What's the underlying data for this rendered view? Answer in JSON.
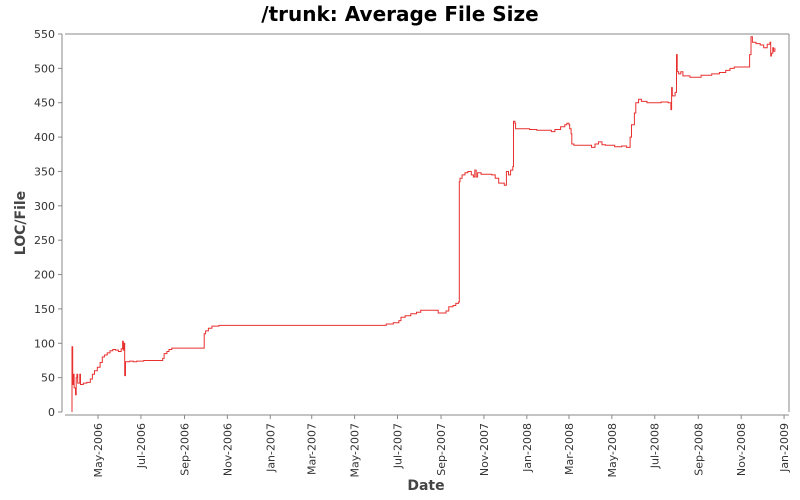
{
  "chart_data": {
    "type": "line",
    "title": "/trunk: Average File Size",
    "xlabel": "Date",
    "ylabel": "LOC/File",
    "ylim": [
      0,
      550
    ],
    "xlim": [
      "2006-03-15",
      "2009-01-08"
    ],
    "yticks": [
      0,
      50,
      100,
      150,
      200,
      250,
      300,
      350,
      400,
      450,
      500,
      550
    ],
    "xticks": [
      {
        "date": "2006-05-01",
        "label": "May-2006"
      },
      {
        "date": "2006-07-01",
        "label": "Jul-2006"
      },
      {
        "date": "2006-09-01",
        "label": "Sep-2006"
      },
      {
        "date": "2006-11-01",
        "label": "Nov-2006"
      },
      {
        "date": "2007-01-01",
        "label": "Jan-2007"
      },
      {
        "date": "2007-03-01",
        "label": "Mar-2007"
      },
      {
        "date": "2007-05-01",
        "label": "May-2007"
      },
      {
        "date": "2007-07-01",
        "label": "Jul-2007"
      },
      {
        "date": "2007-09-01",
        "label": "Sep-2007"
      },
      {
        "date": "2007-11-01",
        "label": "Nov-2007"
      },
      {
        "date": "2008-01-01",
        "label": "Jan-2008"
      },
      {
        "date": "2008-03-01",
        "label": "Mar-2008"
      },
      {
        "date": "2008-05-01",
        "label": "May-2008"
      },
      {
        "date": "2008-07-01",
        "label": "Jul-2008"
      },
      {
        "date": "2008-09-01",
        "label": "Sep-2008"
      },
      {
        "date": "2008-11-01",
        "label": "Nov-2008"
      },
      {
        "date": "2009-01-01",
        "label": "Jan-2009"
      }
    ],
    "grid": false,
    "series": [
      {
        "color": "#e8302f",
        "step": true,
        "points": [
          [
            "2006-03-25",
            0
          ],
          [
            "2006-03-25",
            95
          ],
          [
            "2006-03-26",
            40
          ],
          [
            "2006-03-27",
            55
          ],
          [
            "2006-03-28",
            35
          ],
          [
            "2006-03-30",
            25
          ],
          [
            "2006-03-31",
            50
          ],
          [
            "2006-04-01",
            55
          ],
          [
            "2006-04-02",
            42
          ],
          [
            "2006-04-05",
            55
          ],
          [
            "2006-04-06",
            40
          ],
          [
            "2006-04-10",
            42
          ],
          [
            "2006-04-15",
            43
          ],
          [
            "2006-04-20",
            48
          ],
          [
            "2006-04-23",
            55
          ],
          [
            "2006-04-26",
            60
          ],
          [
            "2006-04-30",
            65
          ],
          [
            "2006-05-04",
            72
          ],
          [
            "2006-05-07",
            80
          ],
          [
            "2006-05-10",
            83
          ],
          [
            "2006-05-14",
            86
          ],
          [
            "2006-05-18",
            89
          ],
          [
            "2006-05-22",
            91
          ],
          [
            "2006-05-26",
            90
          ],
          [
            "2006-05-30",
            88
          ],
          [
            "2006-06-03",
            92
          ],
          [
            "2006-06-05",
            103
          ],
          [
            "2006-06-06",
            90
          ],
          [
            "2006-06-07",
            100
          ],
          [
            "2006-06-08",
            53
          ],
          [
            "2006-06-09",
            73
          ],
          [
            "2006-06-15",
            74
          ],
          [
            "2006-06-20",
            73
          ],
          [
            "2006-06-25",
            74
          ],
          [
            "2006-07-05",
            75
          ],
          [
            "2006-07-20",
            75
          ],
          [
            "2006-08-01",
            78
          ],
          [
            "2006-08-03",
            85
          ],
          [
            "2006-08-07",
            88
          ],
          [
            "2006-08-10",
            91
          ],
          [
            "2006-08-14",
            93
          ],
          [
            "2006-09-01",
            93
          ],
          [
            "2006-09-10",
            93
          ],
          [
            "2006-09-28",
            93
          ],
          [
            "2006-09-29",
            114
          ],
          [
            "2006-10-01",
            118
          ],
          [
            "2006-10-05",
            122
          ],
          [
            "2006-10-10",
            125
          ],
          [
            "2006-10-20",
            126
          ],
          [
            "2006-12-01",
            126
          ],
          [
            "2007-02-01",
            126
          ],
          [
            "2007-04-01",
            126
          ],
          [
            "2007-06-10",
            126
          ],
          [
            "2007-06-15",
            128
          ],
          [
            "2007-06-25",
            130
          ],
          [
            "2007-07-03",
            133
          ],
          [
            "2007-07-06",
            138
          ],
          [
            "2007-07-12",
            140
          ],
          [
            "2007-07-20",
            143
          ],
          [
            "2007-07-28",
            145
          ],
          [
            "2007-08-03",
            148
          ],
          [
            "2007-08-20",
            148
          ],
          [
            "2007-08-28",
            144
          ],
          [
            "2007-09-08",
            147
          ],
          [
            "2007-09-12",
            153
          ],
          [
            "2007-09-18",
            155
          ],
          [
            "2007-09-22",
            158
          ],
          [
            "2007-09-26",
            160
          ],
          [
            "2007-09-27",
            335
          ],
          [
            "2007-09-28",
            340
          ],
          [
            "2007-10-01",
            345
          ],
          [
            "2007-10-05",
            348
          ],
          [
            "2007-10-09",
            350
          ],
          [
            "2007-10-14",
            345
          ],
          [
            "2007-10-17",
            342
          ],
          [
            "2007-10-19",
            352
          ],
          [
            "2007-10-21",
            342
          ],
          [
            "2007-10-23",
            348
          ],
          [
            "2007-10-28",
            346
          ],
          [
            "2007-11-05",
            346
          ],
          [
            "2007-11-12",
            345
          ],
          [
            "2007-11-17",
            340
          ],
          [
            "2007-11-22",
            333
          ],
          [
            "2007-11-30",
            330
          ],
          [
            "2007-12-03",
            350
          ],
          [
            "2007-12-06",
            345
          ],
          [
            "2007-12-09",
            352
          ],
          [
            "2007-12-12",
            357
          ],
          [
            "2007-12-13",
            423
          ],
          [
            "2007-12-15",
            420
          ],
          [
            "2007-12-16",
            412
          ],
          [
            "2007-12-25",
            412
          ],
          [
            "2008-01-05",
            411
          ],
          [
            "2008-01-15",
            410
          ],
          [
            "2008-02-01",
            410
          ],
          [
            "2008-02-05",
            408
          ],
          [
            "2008-02-10",
            411
          ],
          [
            "2008-02-18",
            415
          ],
          [
            "2008-02-24",
            418
          ],
          [
            "2008-02-27",
            420
          ],
          [
            "2008-03-01",
            418
          ],
          [
            "2008-03-02",
            412
          ],
          [
            "2008-03-04",
            405
          ],
          [
            "2008-03-05",
            390
          ],
          [
            "2008-03-08",
            388
          ],
          [
            "2008-03-25",
            388
          ],
          [
            "2008-04-02",
            385
          ],
          [
            "2008-04-07",
            390
          ],
          [
            "2008-04-12",
            393
          ],
          [
            "2008-04-17",
            389
          ],
          [
            "2008-04-22",
            388
          ],
          [
            "2008-05-05",
            386
          ],
          [
            "2008-05-15",
            387
          ],
          [
            "2008-05-22",
            385
          ],
          [
            "2008-05-27",
            400
          ],
          [
            "2008-05-29",
            418
          ],
          [
            "2008-06-02",
            435
          ],
          [
            "2008-06-04",
            450
          ],
          [
            "2008-06-08",
            455
          ],
          [
            "2008-06-12",
            452
          ],
          [
            "2008-06-20",
            450
          ],
          [
            "2008-07-01",
            450
          ],
          [
            "2008-07-10",
            451
          ],
          [
            "2008-07-20",
            450
          ],
          [
            "2008-07-24",
            440
          ],
          [
            "2008-07-25",
            472
          ],
          [
            "2008-07-26",
            460
          ],
          [
            "2008-07-30",
            465
          ],
          [
            "2008-08-01",
            520
          ],
          [
            "2008-08-02",
            495
          ],
          [
            "2008-08-04",
            492
          ],
          [
            "2008-08-07",
            495
          ],
          [
            "2008-08-10",
            489
          ],
          [
            "2008-08-20",
            487
          ],
          [
            "2008-09-05",
            490
          ],
          [
            "2008-09-20",
            492
          ],
          [
            "2008-10-01",
            494
          ],
          [
            "2008-10-10",
            497
          ],
          [
            "2008-10-16",
            500
          ],
          [
            "2008-10-22",
            502
          ],
          [
            "2008-11-01",
            502
          ],
          [
            "2008-11-10",
            502
          ],
          [
            "2008-11-13",
            520
          ],
          [
            "2008-11-15",
            546
          ],
          [
            "2008-11-17",
            538
          ],
          [
            "2008-11-22",
            536
          ],
          [
            "2008-11-28",
            534
          ],
          [
            "2008-12-03",
            530
          ],
          [
            "2008-12-08",
            535
          ],
          [
            "2008-12-12",
            538
          ],
          [
            "2008-12-13",
            518
          ],
          [
            "2008-12-14",
            522
          ],
          [
            "2008-12-16",
            530
          ],
          [
            "2008-12-17",
            525
          ],
          [
            "2008-12-19",
            530
          ]
        ]
      }
    ]
  }
}
